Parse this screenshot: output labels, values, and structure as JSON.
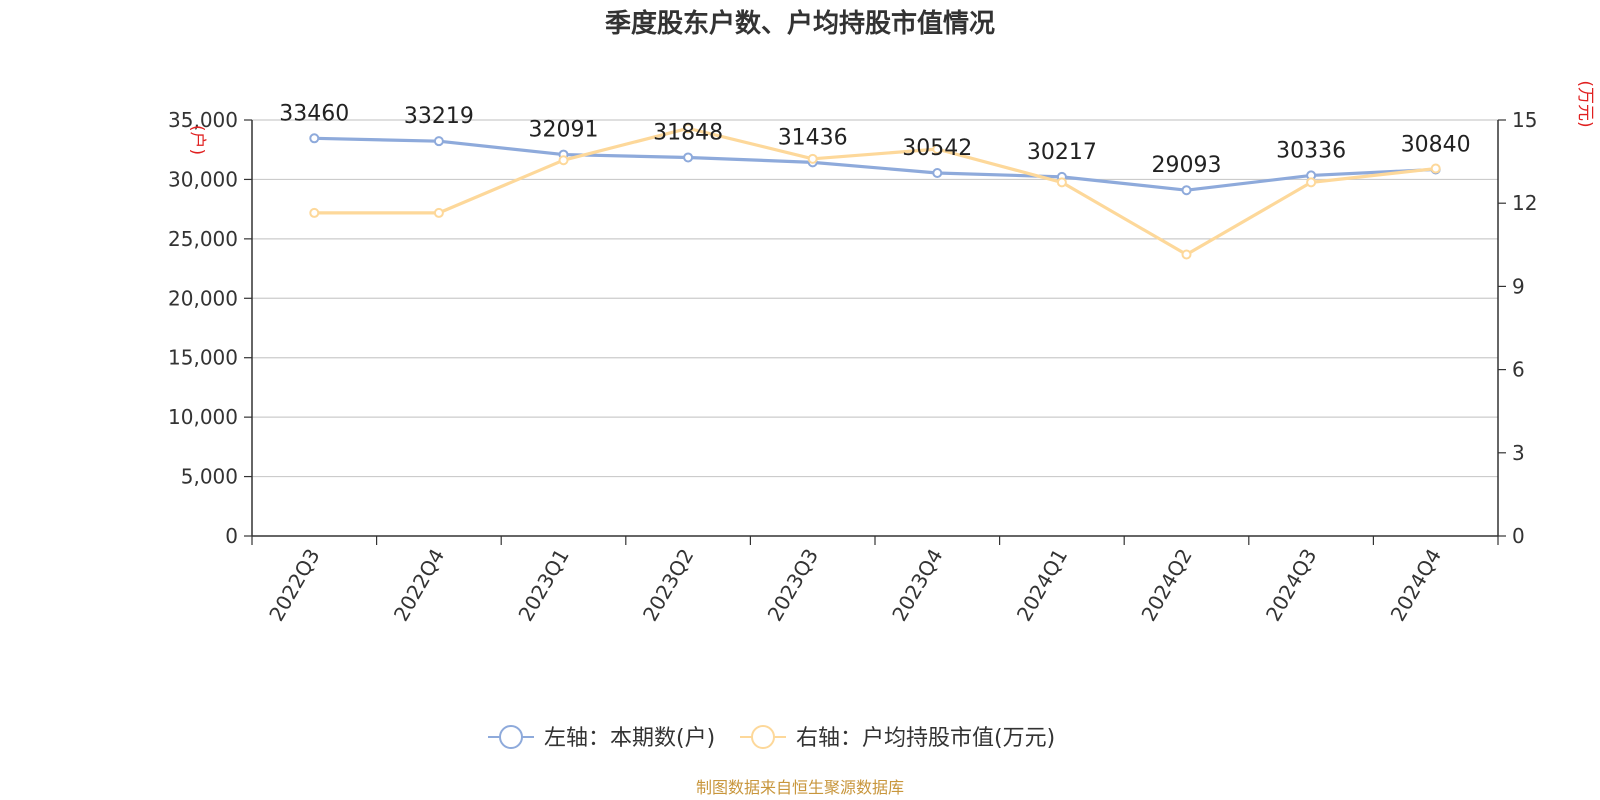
{
  "chart_data": {
    "type": "line",
    "title": "季度股东户数、户均持股市值情况",
    "categories": [
      "2022Q3",
      "2022Q4",
      "2023Q1",
      "2023Q2",
      "2023Q3",
      "2023Q4",
      "2024Q1",
      "2024Q2",
      "2024Q3",
      "2024Q4"
    ],
    "left_axis": {
      "unit_label": "(户)",
      "ylim": [
        0,
        35000
      ],
      "ticks": [
        0,
        5000,
        10000,
        15000,
        20000,
        25000,
        30000,
        35000
      ],
      "tick_labels": [
        "0",
        "5,000",
        "10,000",
        "15,000",
        "20,000",
        "25,000",
        "30,000",
        "35,000"
      ]
    },
    "right_axis": {
      "unit_label": "(万元)",
      "ylim": [
        0,
        15
      ],
      "ticks": [
        0,
        3,
        6,
        9,
        12,
        15
      ],
      "tick_labels": [
        "0",
        "3",
        "6",
        "9",
        "12",
        "15"
      ]
    },
    "series": [
      {
        "name": "左轴：本期数(户)",
        "axis": "left",
        "color": "#8eaadb",
        "values": [
          33460,
          33219,
          32091,
          31848,
          31436,
          30542,
          30217,
          29093,
          30336,
          30840
        ],
        "labels": [
          "33460",
          "33219",
          "32091",
          "31848",
          "31436",
          "30542",
          "30217",
          "29093",
          "30336",
          "30840"
        ]
      },
      {
        "name": "右轴：户均持股市值(万元)",
        "axis": "right",
        "color": "#fdd89a",
        "values": [
          11.65,
          11.65,
          13.55,
          14.7,
          13.6,
          13.95,
          12.75,
          10.15,
          12.75,
          13.25
        ]
      }
    ],
    "grid": true,
    "legend_position": "bottom-center"
  },
  "source": "制图数据来自恒生聚源数据库"
}
